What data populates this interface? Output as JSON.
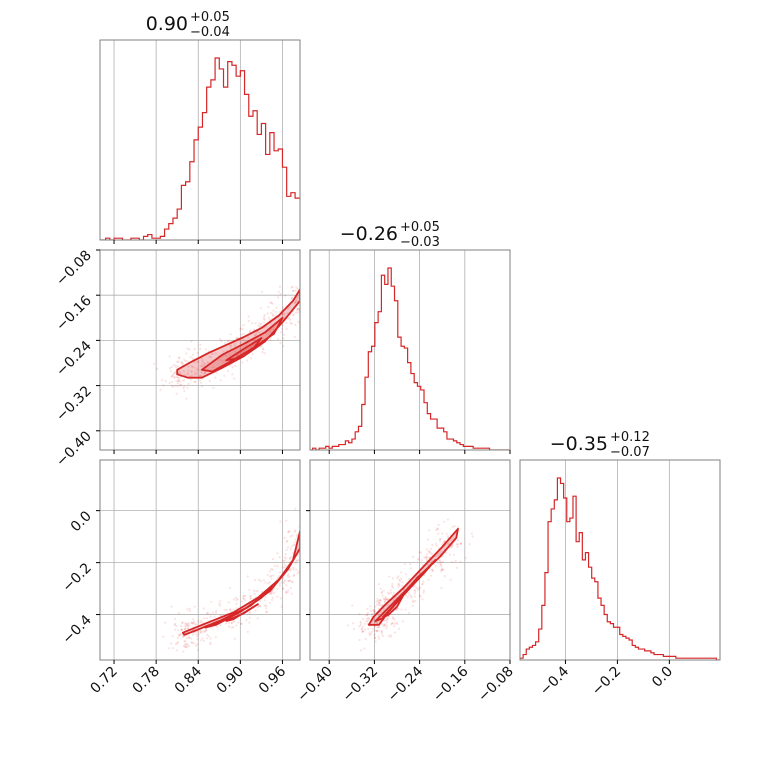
{
  "chart_data": {
    "type": "corner",
    "colors": {
      "series": "#d62728",
      "grid": "#b0b0b0",
      "frame": "#808080"
    },
    "grid": true,
    "parameters": [
      {
        "title": {
          "median": "0.90",
          "plus": "+0.05",
          "minus": "−0.04"
        },
        "range": [
          0.7,
          0.985
        ],
        "ticks": [
          0.72,
          0.78,
          0.84,
          0.9,
          0.96
        ],
        "tick_labels": [
          "0.72",
          "0.78",
          "0.84",
          "0.90",
          "0.96"
        ]
      },
      {
        "title": {
          "median": "−0.26",
          "plus": "+0.05",
          "minus": "−0.03"
        },
        "range": [
          -0.434,
          -0.08
        ],
        "ticks": [
          -0.4,
          -0.32,
          -0.24,
          -0.16,
          -0.08
        ],
        "tick_labels": [
          "−0.40",
          "−0.32",
          "−0.24",
          "−0.16",
          "−0.08"
        ]
      },
      {
        "title": {
          "median": "−0.35",
          "plus": "+0.12",
          "minus": "−0.07"
        },
        "range": [
          -0.575,
          0.195
        ],
        "ticks": [
          -0.4,
          -0.2,
          0.0
        ],
        "tick_labels": [
          "−0.4",
          "−0.2",
          "0.0"
        ]
      }
    ],
    "histograms": [
      {
        "param": 0,
        "bins": [
          0.7,
          0.702,
          0.708,
          0.714,
          0.72,
          0.726,
          0.732,
          0.738,
          0.744,
          0.75,
          0.756,
          0.762,
          0.768,
          0.774,
          0.78,
          0.786,
          0.792,
          0.798,
          0.804,
          0.81,
          0.816,
          0.822,
          0.828,
          0.834,
          0.84,
          0.846,
          0.852,
          0.858,
          0.864,
          0.87,
          0.876,
          0.882,
          0.888,
          0.894,
          0.9,
          0.906,
          0.912,
          0.918,
          0.924,
          0.93,
          0.936,
          0.942,
          0.948,
          0.954,
          0.96,
          0.966,
          0.972,
          0.978,
          0.985
        ],
        "counts": [
          0,
          0,
          1,
          0,
          1,
          1,
          0,
          0,
          1,
          1,
          0,
          2,
          3,
          1,
          1,
          2,
          6,
          9,
          12,
          17,
          30,
          32,
          43,
          55,
          62,
          70,
          84,
          88,
          100,
          94,
          84,
          98,
          96,
          90,
          93,
          80,
          68,
          71,
          58,
          64,
          47,
          59,
          49,
          50,
          40,
          24,
          26,
          23
        ]
      },
      {
        "param": 1,
        "bins": [
          -0.434,
          -0.4294,
          -0.4236,
          -0.4178,
          -0.412,
          -0.4062,
          -0.4004,
          -0.3946,
          -0.3888,
          -0.383,
          -0.3772,
          -0.3714,
          -0.3656,
          -0.3598,
          -0.354,
          -0.3482,
          -0.3424,
          -0.3366,
          -0.3308,
          -0.325,
          -0.3192,
          -0.3134,
          -0.3076,
          -0.3018,
          -0.296,
          -0.2902,
          -0.2844,
          -0.2786,
          -0.2728,
          -0.267,
          -0.2612,
          -0.2554,
          -0.2496,
          -0.2438,
          -0.238,
          -0.2322,
          -0.2264,
          -0.2206,
          -0.2148,
          -0.209,
          -0.2032,
          -0.1974,
          -0.1916,
          -0.1858,
          -0.18,
          -0.1742,
          -0.1684,
          -0.1626,
          -0.1568,
          -0.151,
          -0.1452,
          -0.1394,
          -0.1336,
          -0.1278,
          -0.122,
          -0.1162,
          -0.1104,
          -0.1046,
          -0.0988,
          -0.093,
          -0.0872,
          -0.0814
        ],
        "counts": [
          0,
          1,
          0,
          1,
          1,
          2,
          1,
          2,
          2,
          3,
          3,
          5,
          4,
          6,
          10,
          13,
          25,
          40,
          54,
          57,
          70,
          76,
          96,
          91,
          100,
          90,
          82,
          62,
          57,
          56,
          48,
          42,
          37,
          35,
          33,
          26,
          20,
          17,
          17,
          12,
          12,
          10,
          6,
          6,
          5,
          4,
          3,
          2,
          2,
          2,
          1,
          1,
          1,
          1,
          1,
          0,
          0,
          0,
          0,
          0,
          0
        ]
      },
      {
        "param": 2,
        "bins": [
          -0.575,
          -0.563,
          -0.551,
          -0.539,
          -0.527,
          -0.515,
          -0.503,
          -0.491,
          -0.479,
          -0.467,
          -0.455,
          -0.443,
          -0.431,
          -0.419,
          -0.407,
          -0.395,
          -0.383,
          -0.371,
          -0.359,
          -0.347,
          -0.335,
          -0.323,
          -0.311,
          -0.299,
          -0.287,
          -0.275,
          -0.263,
          -0.251,
          -0.239,
          -0.227,
          -0.215,
          -0.203,
          -0.191,
          -0.179,
          -0.167,
          -0.155,
          -0.143,
          -0.131,
          -0.119,
          -0.107,
          -0.095,
          -0.083,
          -0.071,
          -0.059,
          -0.047,
          -0.035,
          -0.023,
          -0.011,
          0.001,
          0.013,
          0.025,
          0.037,
          0.049,
          0.061,
          0.073,
          0.085,
          0.097,
          0.109,
          0.121,
          0.133,
          0.145,
          0.157,
          0.169,
          0.181,
          0.195
        ],
        "counts": [
          1,
          3,
          6,
          7,
          8,
          10,
          17,
          30,
          48,
          76,
          83,
          88,
          100,
          97,
          89,
          76,
          78,
          90,
          65,
          70,
          55,
          59,
          51,
          45,
          43,
          34,
          30,
          25,
          21,
          20,
          18,
          18,
          14,
          13,
          12,
          11,
          8,
          7,
          6,
          6,
          5,
          5,
          4,
          3,
          3,
          3,
          2,
          2,
          2,
          2,
          1,
          1,
          1,
          1,
          1,
          1,
          1,
          1,
          1,
          1,
          1,
          1,
          1,
          0
        ]
      }
    ],
    "pairs": [
      {
        "x_param": 0,
        "y_param": 1,
        "contours": [
          [
            [
              0.81,
              -0.292
            ],
            [
              0.83,
              -0.278
            ],
            [
              0.855,
              -0.262
            ],
            [
              0.88,
              -0.248
            ],
            [
              0.905,
              -0.234
            ],
            [
              0.93,
              -0.218
            ],
            [
              0.955,
              -0.196
            ],
            [
              0.975,
              -0.17
            ],
            [
              0.985,
              -0.15
            ],
            [
              0.985,
              -0.17
            ],
            [
              0.962,
              -0.205
            ],
            [
              0.935,
              -0.242
            ],
            [
              0.905,
              -0.268
            ],
            [
              0.872,
              -0.29
            ],
            [
              0.845,
              -0.306
            ],
            [
              0.825,
              -0.306
            ],
            [
              0.81,
              -0.3
            ]
          ],
          [
            [
              0.845,
              -0.292
            ],
            [
              0.875,
              -0.265
            ],
            [
              0.905,
              -0.246
            ],
            [
              0.935,
              -0.226
            ],
            [
              0.96,
              -0.2
            ],
            [
              0.948,
              -0.228
            ],
            [
              0.918,
              -0.254
            ],
            [
              0.888,
              -0.276
            ],
            [
              0.86,
              -0.295
            ]
          ],
          [
            [
              0.88,
              -0.275
            ],
            [
              0.905,
              -0.255
            ],
            [
              0.93,
              -0.236
            ],
            [
              0.92,
              -0.252
            ],
            [
              0.895,
              -0.272
            ]
          ]
        ]
      },
      {
        "x_param": 0,
        "y_param": 2,
        "contours": [
          [
            [
              0.818,
              -0.47
            ],
            [
              0.85,
              -0.435
            ],
            [
              0.89,
              -0.392
            ],
            [
              0.925,
              -0.335
            ],
            [
              0.955,
              -0.265
            ],
            [
              0.975,
              -0.19
            ],
            [
              0.985,
              -0.08
            ],
            [
              0.985,
              -0.145
            ],
            [
              0.968,
              -0.225
            ],
            [
              0.942,
              -0.31
            ],
            [
              0.908,
              -0.375
            ],
            [
              0.87,
              -0.425
            ],
            [
              0.838,
              -0.46
            ],
            [
              0.82,
              -0.478
            ]
          ],
          [
            [
              0.85,
              -0.45
            ],
            [
              0.885,
              -0.41
            ],
            [
              0.915,
              -0.365
            ],
            [
              0.945,
              -0.295
            ],
            [
              0.93,
              -0.335
            ],
            [
              0.9,
              -0.39
            ],
            [
              0.865,
              -0.44
            ]
          ],
          [
            [
              0.88,
              -0.425
            ],
            [
              0.905,
              -0.395
            ],
            [
              0.925,
              -0.36
            ],
            [
              0.91,
              -0.385
            ],
            [
              0.89,
              -0.418
            ]
          ]
        ]
      },
      {
        "x_param": 1,
        "y_param": 2,
        "contours": [
          [
            [
              -0.33,
              -0.44
            ],
            [
              -0.322,
              -0.41
            ],
            [
              -0.3,
              -0.36
            ],
            [
              -0.27,
              -0.3
            ],
            [
              -0.235,
              -0.22
            ],
            [
              -0.2,
              -0.14
            ],
            [
              -0.172,
              -0.07
            ],
            [
              -0.175,
              -0.105
            ],
            [
              -0.205,
              -0.18
            ],
            [
              -0.245,
              -0.26
            ],
            [
              -0.275,
              -0.335
            ],
            [
              -0.295,
              -0.39
            ],
            [
              -0.312,
              -0.44
            ]
          ],
          [
            [
              -0.318,
              -0.425
            ],
            [
              -0.3,
              -0.385
            ],
            [
              -0.275,
              -0.33
            ],
            [
              -0.245,
              -0.265
            ],
            [
              -0.212,
              -0.19
            ],
            [
              -0.23,
              -0.235
            ],
            [
              -0.258,
              -0.3
            ],
            [
              -0.285,
              -0.365
            ],
            [
              -0.305,
              -0.415
            ]
          ],
          [
            [
              -0.305,
              -0.41
            ],
            [
              -0.29,
              -0.375
            ],
            [
              -0.27,
              -0.33
            ],
            [
              -0.28,
              -0.37
            ],
            [
              -0.296,
              -0.402
            ]
          ]
        ]
      }
    ]
  }
}
